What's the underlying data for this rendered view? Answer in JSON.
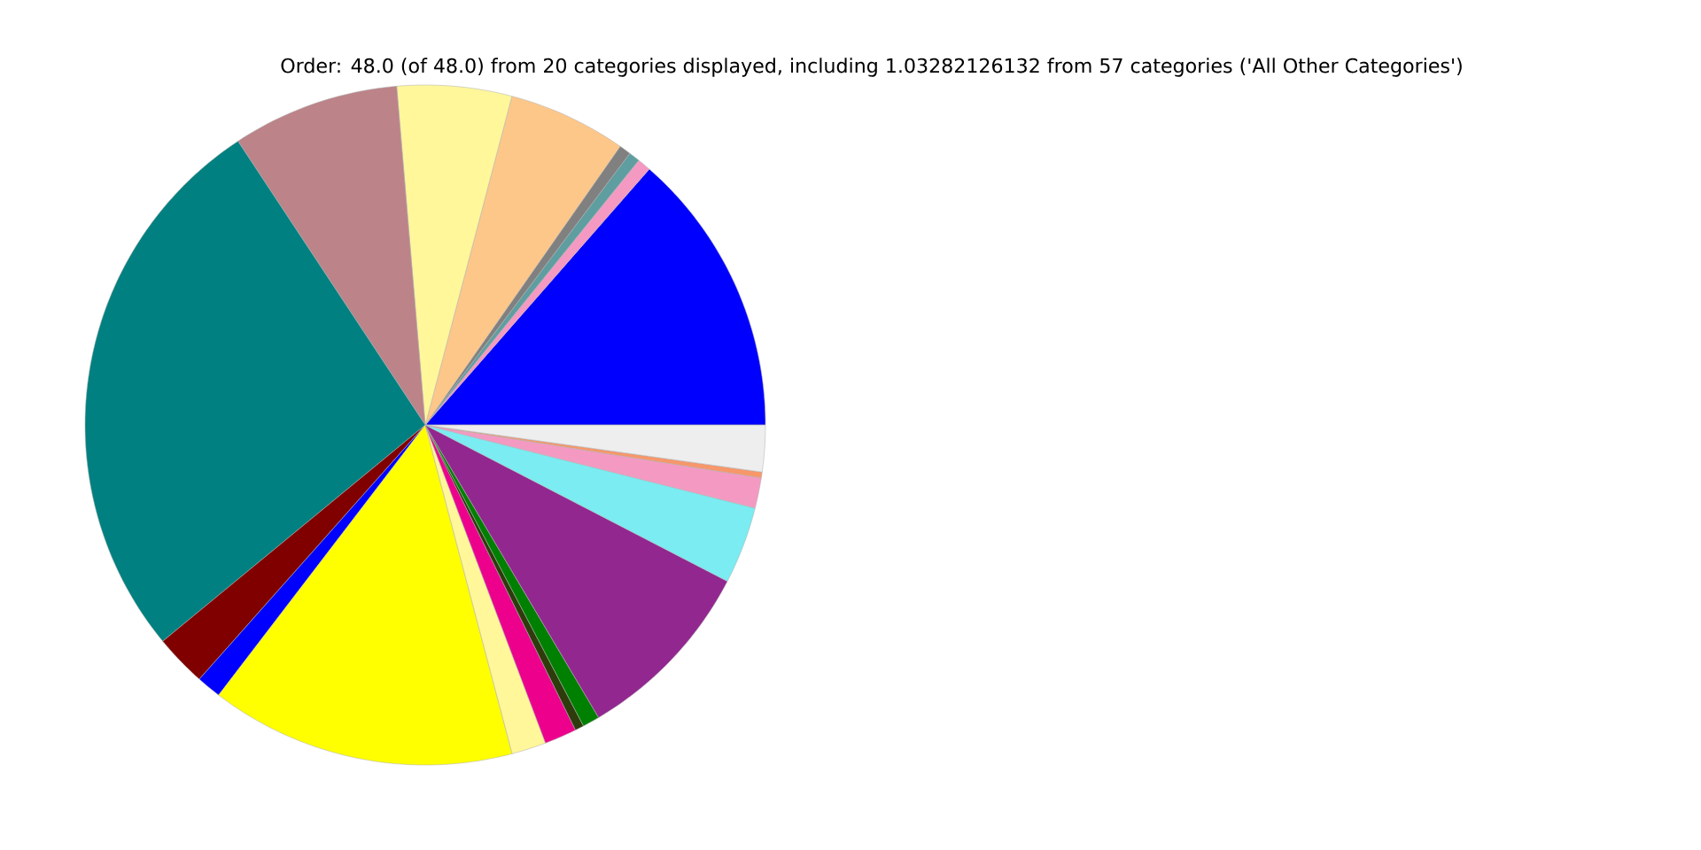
{
  "chart_data": {
    "type": "pie",
    "title": "Order: 48.0 (of 48.0) from 20 categories displayed, including 1.03282126132 from 57 categories ('All Other Categories')",
    "categories": [
      null,
      null,
      null,
      null,
      null,
      null,
      null,
      null,
      null,
      null,
      null,
      null,
      null,
      null,
      null,
      null,
      null,
      null,
      null,
      null
    ],
    "values": [
      13.56,
      0.64,
      0.53,
      0.56,
      5.61,
      5.44,
      7.94,
      26.69,
      2.47,
      1.17,
      14.5,
      1.64,
      1.53,
      0.42,
      0.81,
      8.89,
      3.67,
      1.44,
      0.28,
      2.21
    ],
    "colors": [
      "#0000ff",
      "#f49ac2",
      "#5f9ea0",
      "#808080",
      "#fdc78a",
      "#fff79a",
      "#bc8389",
      "#008080",
      "#800000",
      "#0000ff",
      "#ffff00",
      "#fff79a",
      "#ec008c",
      "#2e3b0b",
      "#008000",
      "#92278f",
      "#7aecf2",
      "#f49ac2",
      "#f7976a",
      "#eeeeee"
    ]
  }
}
